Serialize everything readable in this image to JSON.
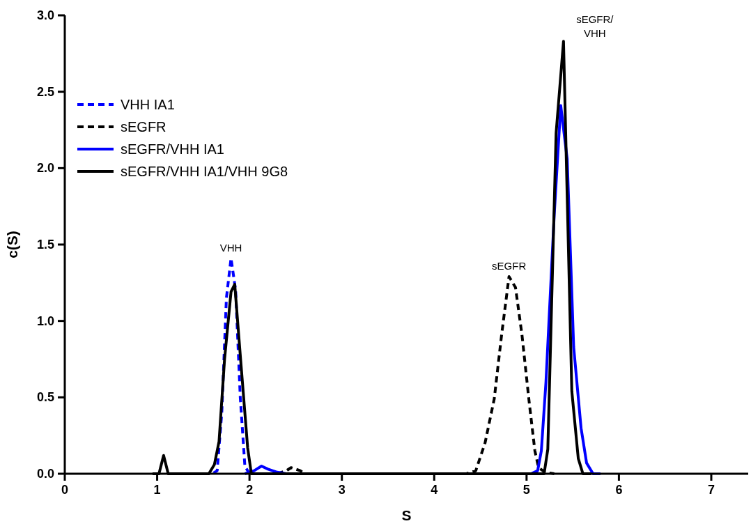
{
  "chart_data": {
    "type": "line",
    "xlabel": "S",
    "ylabel": "c(S)",
    "xlim": [
      0,
      7.4
    ],
    "ylim": [
      0,
      3
    ],
    "xticks": [
      0,
      1,
      2,
      3,
      4,
      5,
      6,
      7
    ],
    "yticks": [
      {
        "value": 0,
        "label": "0.0"
      },
      {
        "value": 0.5,
        "label": "0.5"
      },
      {
        "value": 1,
        "label": "1.0"
      },
      {
        "value": 1.5,
        "label": "1.5"
      },
      {
        "value": 2,
        "label": "2.0"
      },
      {
        "value": 2.5,
        "label": "2.5"
      },
      {
        "value": 3,
        "label": "3.0"
      }
    ],
    "grid": false,
    "legend": "top left",
    "marker": "none",
    "series": [
      {
        "name": "VHH IA1",
        "color": "#0000ff",
        "line_style": "dashed",
        "x": [
          1.5,
          1.6,
          1.65,
          1.7,
          1.75,
          1.8,
          1.85,
          1.9,
          1.95,
          2.0,
          2.1
        ],
        "values": [
          0,
          0,
          0.02,
          0.4,
          1.15,
          1.41,
          1.2,
          0.5,
          0.05,
          0,
          0
        ]
      },
      {
        "name": "sEGFR",
        "color": "#000000",
        "line_style": "dashed",
        "x": [
          2.3,
          2.4,
          2.45,
          2.5,
          2.55,
          2.6,
          4.35,
          4.45,
          4.55,
          4.65,
          4.73,
          4.81,
          4.88,
          4.95,
          5.03,
          5.09,
          5.13,
          5.2,
          5.3
        ],
        "values": [
          0,
          0.02,
          0.04,
          0.03,
          0.02,
          0,
          0,
          0.02,
          0.2,
          0.49,
          0.91,
          1.29,
          1.22,
          0.91,
          0.46,
          0.15,
          0.04,
          0.01,
          0
        ]
      },
      {
        "name": "sEGFR/VHH IA1",
        "color": "#0000ff",
        "line_style": "solid",
        "x": [
          1.95,
          2.05,
          2.13,
          2.2,
          2.3,
          2.4,
          5.05,
          5.12,
          5.16,
          5.21,
          5.3,
          5.37,
          5.44,
          5.51,
          5.59,
          5.65,
          5.72,
          5.8
        ],
        "values": [
          0,
          0.02,
          0.05,
          0.03,
          0.01,
          0,
          0,
          0.02,
          0.15,
          0.6,
          1.7,
          2.41,
          2.06,
          0.83,
          0.3,
          0.07,
          0,
          0
        ]
      },
      {
        "name": "sEGFR/VHH IA1/VHH 9G8",
        "color": "#000000",
        "line_style": "solid",
        "x": [
          0.95,
          1.02,
          1.07,
          1.12,
          1.5,
          1.56,
          1.62,
          1.67,
          1.73,
          1.8,
          1.84,
          1.91,
          1.98,
          2.02,
          2.1,
          5.1,
          5.19,
          5.23,
          5.32,
          5.4,
          5.49,
          5.56,
          5.61,
          5.7
        ],
        "values": [
          0,
          0,
          0.12,
          0,
          0,
          0,
          0.06,
          0.21,
          0.75,
          1.19,
          1.24,
          0.7,
          0.17,
          0,
          0,
          0,
          0,
          0.16,
          2.23,
          2.83,
          0.54,
          0.1,
          0,
          0
        ]
      }
    ],
    "annotations": [
      {
        "text": "VHH",
        "x": 1.8,
        "y": 1.41
      },
      {
        "text": "sEGFR",
        "x": 4.81,
        "y": 1.29
      },
      {
        "text": "sEGFR/\nVHH",
        "x": 5.4,
        "y": 2.83
      }
    ]
  }
}
